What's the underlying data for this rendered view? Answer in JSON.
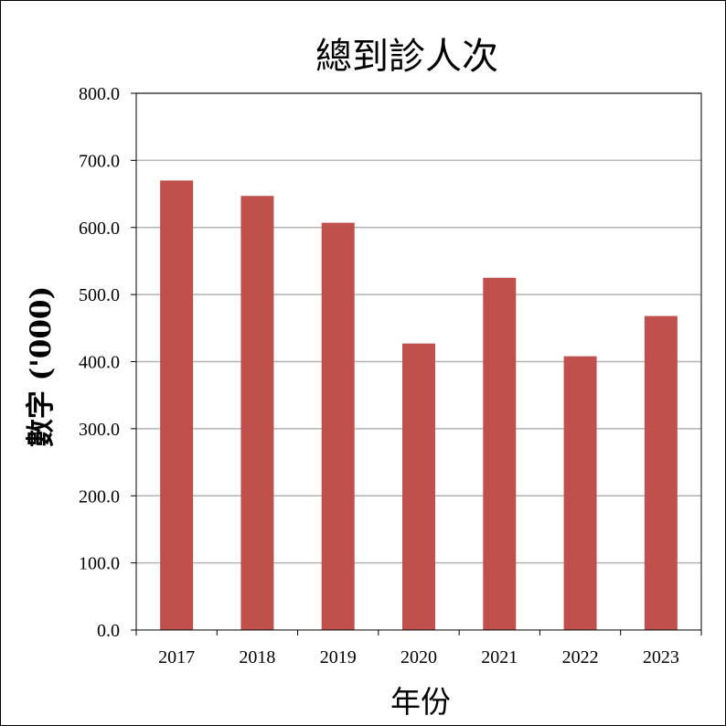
{
  "chart_data": {
    "type": "bar",
    "title": "總到診人次",
    "xlabel": "年份",
    "ylabel": "數字 ('000)",
    "categories": [
      "2017",
      "2018",
      "2019",
      "2020",
      "2021",
      "2022",
      "2023"
    ],
    "values": [
      670.0,
      647.0,
      607.0,
      427.0,
      525.0,
      408.0,
      468.0
    ],
    "ylim": [
      0,
      800
    ],
    "yticks": [
      "0.0",
      "100.0",
      "200.0",
      "300.0",
      "400.0",
      "500.0",
      "600.0",
      "700.0",
      "800.0"
    ],
    "grid": true,
    "legend": "none",
    "bar_color": "#C0504D",
    "grid_color": "#B3B3B3"
  }
}
